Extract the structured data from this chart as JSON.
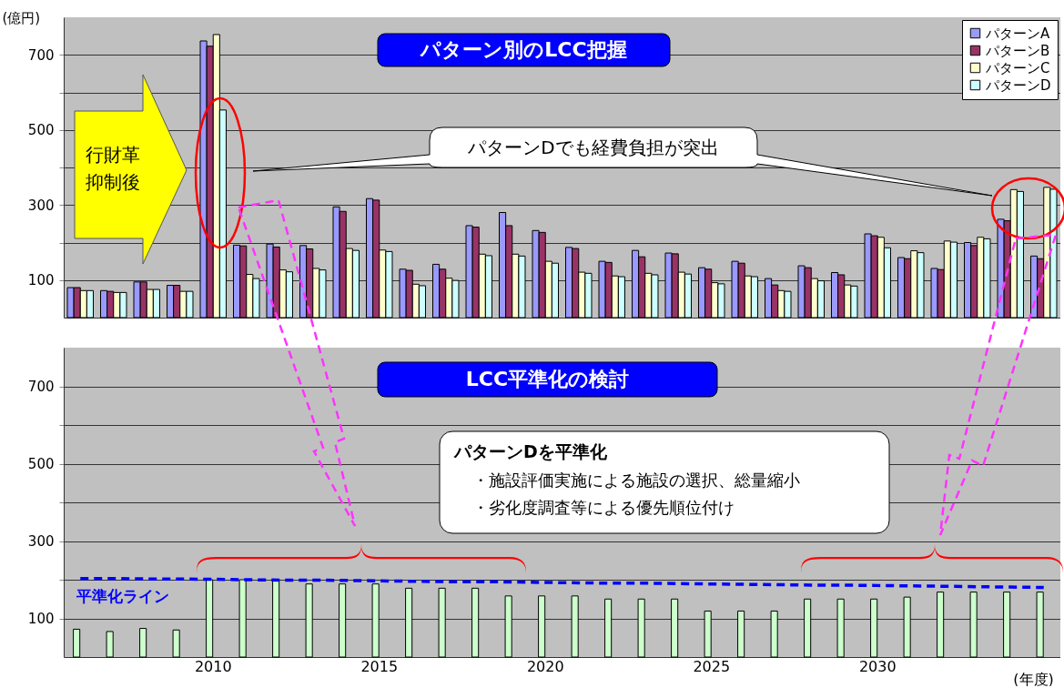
{
  "chart_data": [
    {
      "type": "bar",
      "title": "パターン別のLCC把握",
      "ylabel": "(億円)",
      "categories": [
        null,
        null,
        null,
        null,
        "2010",
        null,
        null,
        null,
        null,
        "2015",
        null,
        null,
        null,
        null,
        "2020",
        null,
        null,
        null,
        null,
        "2025",
        null,
        null,
        null,
        null,
        "2030",
        null,
        null,
        null,
        null,
        null
      ],
      "series": [
        {
          "name": "パターンA",
          "color": "#9999ff",
          "values": [
            80,
            72,
            95,
            86,
            737,
            193,
            196,
            192,
            295,
            317,
            129,
            142,
            245,
            280,
            232,
            187,
            150,
            179,
            172,
            133,
            150,
            104,
            138,
            120,
            223,
            160,
            131,
            200,
            262,
            164
          ]
        },
        {
          "name": "パターンB",
          "color": "#993366",
          "values": [
            80,
            70,
            95,
            86,
            723,
            191,
            188,
            183,
            283,
            313,
            126,
            129,
            241,
            245,
            227,
            184,
            147,
            162,
            170,
            129,
            145,
            87,
            133,
            114,
            218,
            157,
            128,
            192,
            258,
            157
          ]
        },
        {
          "name": "パターンC",
          "color": "#ffffcc",
          "values": [
            72,
            67,
            75,
            70,
            754,
            115,
            127,
            131,
            184,
            180,
            89,
            105,
            169,
            169,
            150,
            121,
            111,
            118,
            121,
            93,
            111,
            72,
            104,
            87,
            214,
            178,
            204,
            214,
            341,
            347
          ]
        },
        {
          "name": "パターンD",
          "color": "#ccffff",
          "values": [
            72,
            67,
            75,
            70,
            553,
            104,
            122,
            127,
            179,
            176,
            85,
            99,
            165,
            164,
            145,
            118,
            109,
            114,
            116,
            90,
            109,
            70,
            98,
            84,
            186,
            173,
            201,
            210,
            336,
            342
          ]
        }
      ],
      "ylim": [
        0,
        800
      ],
      "yticks": [
        100,
        {
          "value": 200,
          "label": null
        },
        300,
        {
          "value": 400,
          "label": null
        },
        500,
        {
          "value": 600,
          "label": null
        },
        700
      ],
      "grid": "y",
      "legend": "top right",
      "tick_labels": "y",
      "annotations": [
        "行財革抑制後",
        "パターンDでも経費負担が突出"
      ]
    },
    {
      "type": "bar",
      "title": "LCC平準化の検討",
      "xlabel": "(年度)",
      "categories": [
        null,
        null,
        null,
        null,
        "2010",
        null,
        null,
        null,
        null,
        "2015",
        null,
        null,
        null,
        null,
        "2020",
        null,
        null,
        null,
        null,
        "2025",
        null,
        null,
        null,
        null,
        "2030",
        null,
        null,
        null,
        null,
        null
      ],
      "series": [
        {
          "color": "#ccffcc",
          "values": [
            72,
            66,
            74,
            70,
            200,
            200,
            200,
            189,
            189,
            189,
            178,
            178,
            178,
            158,
            158,
            158,
            150,
            150,
            150,
            119,
            119,
            119,
            150,
            150,
            150,
            155,
            168,
            168,
            168,
            168
          ]
        },
        {
          "type": "line",
          "name": "平準化ライン",
          "color": "#0000ff",
          "line_style": "dashed",
          "values": [
            203,
            203,
            202,
            202,
            201,
            200,
            199,
            199,
            198,
            197,
            196,
            195,
            195,
            194,
            193,
            192,
            191,
            191,
            190,
            189,
            188,
            187,
            186,
            186,
            185,
            184,
            183,
            182,
            181,
            180
          ]
        }
      ],
      "ylim": [
        0,
        800
      ],
      "yticks": [
        100,
        {
          "value": 200,
          "label": null
        },
        300,
        {
          "value": 400,
          "label": null
        },
        500,
        {
          "value": 600,
          "label": null
        },
        700
      ],
      "grid": "y",
      "annotations": [
        "パターンDを平準化",
        "・施設評価実施による施設の選択、総量縮小",
        "・劣化度調査等による優先順位付け"
      ]
    }
  ]
}
